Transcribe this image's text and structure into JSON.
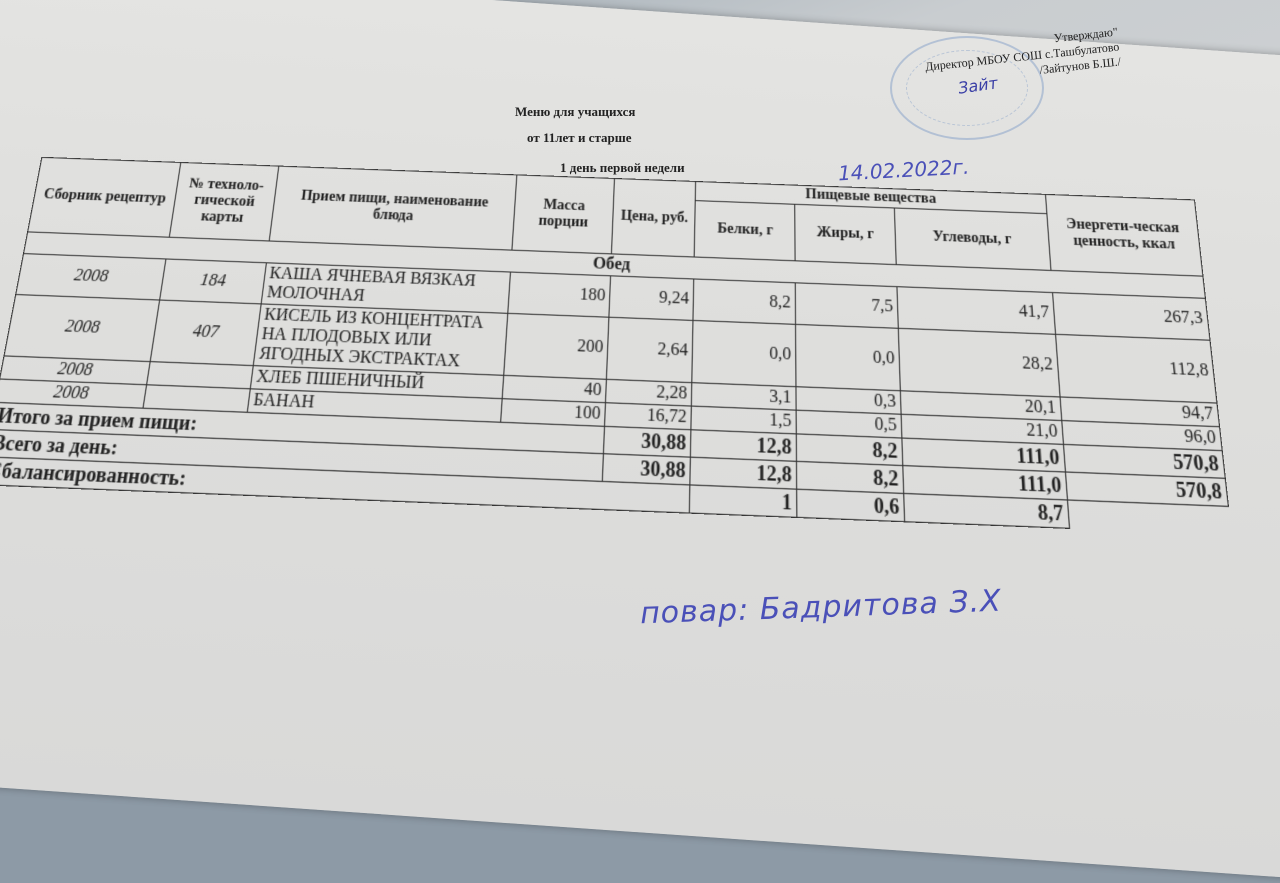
{
  "approval": {
    "line1": "Утверждаю\"",
    "line2": "Директор МБОУ СОШ с.Ташбулатово",
    "line3": "/Зайтунов Б.Ш./",
    "signature": "Зайт"
  },
  "title": {
    "line1": "Меню  для учащихся",
    "line2": "от 11лет и старше",
    "line3": "1 день первой недели",
    "date_handwritten": "14.02.2022г."
  },
  "table": {
    "headers": {
      "collection": "Сборник рецептур",
      "tech_card": "№ техноло-гической карты",
      "meal": "Прием пищи, наименование блюда",
      "mass": "Масса порции",
      "price": "Цена, руб.",
      "nutrients": "Пищевые вещества",
      "proteins": "Белки, г",
      "fats": "Жиры, г",
      "carbs": "Углеводы, г",
      "energy": "Энергети-ческая ценность, ккал"
    },
    "section": "Обед",
    "rows": [
      {
        "collection": "2008",
        "card": "184",
        "dish": "КАША ЯЧНЕВАЯ ВЯЗКАЯ МОЛОЧНАЯ",
        "mass": "180",
        "price": "9,24",
        "proteins": "8,2",
        "fats": "7,5",
        "carbs": "41,7",
        "energy": "267,3"
      },
      {
        "collection": "2008",
        "card": "407",
        "dish": "КИСЕЛЬ ИЗ КОНЦЕНТРАТА НА ПЛОДОВЫХ ИЛИ ЯГОДНЫХ ЭКСТРАКТАХ",
        "mass": "200",
        "price": "2,64",
        "proteins": "0,0",
        "fats": "0,0",
        "carbs": "28,2",
        "energy": "112,8"
      },
      {
        "collection": "2008",
        "card": "",
        "dish": "ХЛЕБ ПШЕНИЧНЫЙ",
        "mass": "40",
        "price": "2,28",
        "proteins": "3,1",
        "fats": "0,3",
        "carbs": "20,1",
        "energy": "94,7"
      },
      {
        "collection": "2008",
        "card": "",
        "dish": "БАНАН",
        "mass": "100",
        "price": "16,72",
        "proteins": "1,5",
        "fats": "0,5",
        "carbs": "21,0",
        "energy": "96,0"
      }
    ],
    "totals": [
      {
        "label": "Итого за прием пищи:",
        "price": "30,88",
        "proteins": "12,8",
        "fats": "8,2",
        "carbs": "111,0",
        "energy": "570,8"
      },
      {
        "label": "Всего за день:",
        "price": "30,88",
        "proteins": "12,8",
        "fats": "8,2",
        "carbs": "111,0",
        "energy": "570,8"
      }
    ],
    "balance": {
      "label": "Сбалансированность:",
      "proteins": "1",
      "fats": "0,6",
      "carbs": "8,7"
    }
  },
  "cook_note": "повар: Бадритова З.Х"
}
